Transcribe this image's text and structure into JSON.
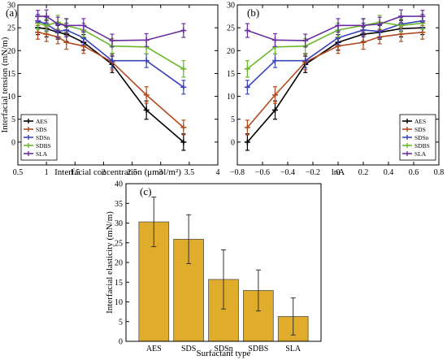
{
  "chart_data": [
    {
      "type": "line",
      "panel_label": "(a)",
      "xlabel": "Interfacial concentration (μmol/m²)",
      "ylabel": "Interfacial tension (mN/m)",
      "xlim": [
        0.5,
        4.0
      ],
      "ylim": [
        -5,
        30
      ],
      "xticks": [
        "0.5",
        "1",
        "1.5",
        "2",
        "2.5",
        "3",
        "3.5",
        "4"
      ],
      "yticks": [
        "0",
        "5",
        "10",
        "15",
        "20",
        "25",
        "30"
      ],
      "legend_position": "bottom-left",
      "series": [
        {
          "name": "AES",
          "color": "#000000",
          "x": [
            0.85,
            1.0,
            1.2,
            1.35,
            1.65,
            2.15,
            2.75,
            3.4
          ],
          "y": [
            25.0,
            24.8,
            24.0,
            23.6,
            21.8,
            17.0,
            7.0,
            0.0
          ],
          "err": [
            1.5,
            1.8,
            1.5,
            1.6,
            1.7,
            1.8,
            2.0,
            1.8
          ]
        },
        {
          "name": "SDS",
          "color": "#b34a1e",
          "x": [
            0.85,
            1.0,
            1.2,
            1.35,
            1.65,
            2.15,
            2.75,
            3.4
          ],
          "y": [
            24.0,
            23.6,
            23.0,
            21.8,
            21.0,
            17.5,
            10.3,
            3.2
          ],
          "err": [
            1.5,
            1.6,
            1.5,
            1.5,
            1.6,
            1.7,
            1.8,
            1.6
          ]
        },
        {
          "name": "SDSn",
          "color": "#3a43b8",
          "x": [
            0.85,
            1.0,
            1.2,
            1.35,
            1.65,
            2.15,
            2.75,
            3.4
          ],
          "y": [
            26.5,
            25.8,
            24.2,
            24.5,
            22.8,
            17.8,
            17.8,
            12.0
          ],
          "err": [
            1.4,
            1.5,
            1.4,
            1.5,
            1.5,
            1.6,
            1.5,
            1.5
          ]
        },
        {
          "name": "SDBS",
          "color": "#6ab82c",
          "x": [
            0.85,
            1.0,
            1.2,
            1.35,
            1.65,
            2.15,
            2.75,
            3.4
          ],
          "y": [
            26.0,
            25.5,
            26.2,
            25.5,
            24.5,
            21.0,
            20.8,
            16.0
          ],
          "err": [
            1.4,
            1.4,
            1.5,
            1.4,
            1.5,
            1.6,
            1.5,
            1.8
          ]
        },
        {
          "name": "SLA",
          "color": "#6a2ea0",
          "x": [
            0.85,
            1.0,
            1.2,
            1.35,
            1.65,
            2.15,
            2.75,
            3.4
          ],
          "y": [
            27.5,
            27.5,
            25.8,
            25.5,
            25.5,
            22.2,
            22.3,
            24.4
          ],
          "err": [
            1.3,
            1.4,
            1.5,
            1.5,
            1.5,
            1.4,
            1.4,
            1.5
          ]
        }
      ]
    },
    {
      "type": "line",
      "panel_label": "(b)",
      "xlabel": "lnA",
      "ylabel": "",
      "xlim": [
        -0.8,
        0.8
      ],
      "ylim": [
        -5,
        30
      ],
      "xticks": [
        "−0.8",
        "−0.6",
        "−0.4",
        "−0.2",
        "0",
        "0.2",
        "0.4",
        "0.6",
        "0.8"
      ],
      "yticks": [
        "0",
        "5",
        "10",
        "15",
        "20",
        "25",
        "30"
      ],
      "legend_position": "bottom-right",
      "series": [
        {
          "name": "AES",
          "color": "#000000",
          "x": [
            -0.72,
            -0.5,
            -0.26,
            0.0,
            0.2,
            0.33,
            0.5,
            0.67
          ],
          "y": [
            0.0,
            7.0,
            17.0,
            21.8,
            23.6,
            24.0,
            24.8,
            25.0
          ],
          "err": [
            1.8,
            2.0,
            1.8,
            1.7,
            1.6,
            1.5,
            1.8,
            1.5
          ]
        },
        {
          "name": "SDS",
          "color": "#b34a1e",
          "x": [
            -0.72,
            -0.5,
            -0.26,
            0.0,
            0.2,
            0.33,
            0.5,
            0.67
          ],
          "y": [
            3.2,
            10.3,
            17.5,
            21.0,
            21.8,
            23.0,
            23.6,
            24.0
          ],
          "err": [
            1.6,
            1.8,
            1.7,
            1.6,
            1.5,
            1.5,
            1.6,
            1.5
          ]
        },
        {
          "name": "SDSn",
          "color": "#3a43b8",
          "x": [
            -0.72,
            -0.5,
            -0.26,
            0.0,
            0.2,
            0.33,
            0.5,
            0.67
          ],
          "y": [
            12.0,
            17.8,
            17.8,
            22.8,
            24.5,
            24.2,
            25.8,
            26.5
          ],
          "err": [
            1.5,
            1.5,
            1.6,
            1.5,
            1.5,
            1.4,
            1.5,
            1.4
          ]
        },
        {
          "name": "SDBS",
          "color": "#6ab82c",
          "x": [
            -0.72,
            -0.5,
            -0.26,
            0.0,
            0.2,
            0.33,
            0.5,
            0.67
          ],
          "y": [
            16.0,
            20.8,
            21.0,
            24.5,
            25.5,
            26.2,
            25.5,
            26.0
          ],
          "err": [
            1.8,
            1.5,
            1.6,
            1.5,
            1.4,
            1.5,
            1.4,
            1.4
          ]
        },
        {
          "name": "SLA",
          "color": "#6a2ea0",
          "x": [
            -0.72,
            -0.5,
            -0.26,
            0.0,
            0.2,
            0.33,
            0.5,
            0.67
          ],
          "y": [
            24.4,
            22.3,
            22.2,
            25.5,
            25.5,
            25.8,
            27.5,
            27.5
          ],
          "err": [
            1.5,
            1.4,
            1.4,
            1.5,
            1.5,
            1.5,
            1.4,
            1.3
          ]
        }
      ]
    },
    {
      "type": "bar",
      "panel_label": "(c)",
      "xlabel": "Surfactant type",
      "ylabel": "Interfacial elasticity (mN/m)",
      "categories": [
        "AES",
        "SDS",
        "SDSn",
        "SDBS",
        "SLA"
      ],
      "values": [
        30.3,
        25.9,
        15.7,
        12.9,
        6.3
      ],
      "err": [
        6.3,
        6.2,
        7.5,
        5.2,
        4.7
      ],
      "ylim": [
        0,
        40
      ],
      "yticks": [
        "0",
        "5",
        "10",
        "15",
        "20",
        "25",
        "30",
        "35",
        "40"
      ],
      "bar_color": "#e0ac2b"
    }
  ]
}
